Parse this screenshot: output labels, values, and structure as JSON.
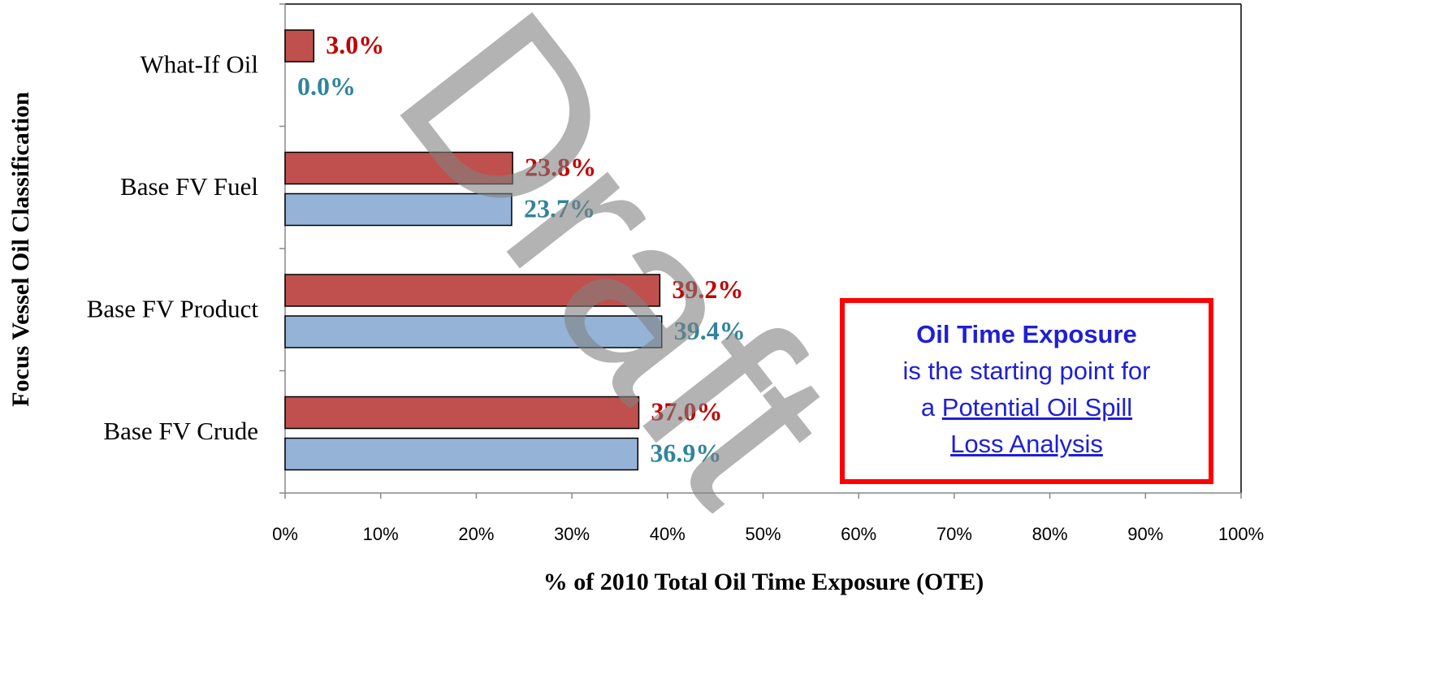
{
  "chart_data": {
    "type": "hbar",
    "x_label": "% of 2010 Total Oil Time Exposure (OTE)",
    "y_label": "Focus Vessel Oil Classification",
    "categories": [
      "What-If Oil",
      "Base FV Fuel",
      "Base FV Product",
      "Base FV Crude"
    ],
    "series": [
      {
        "color": "#c0504d",
        "label_color": "#c00000",
        "values": [
          3.0,
          23.8,
          39.2,
          37.0
        ],
        "value_labels": [
          "3.0%",
          "23.8%",
          "39.2%",
          "37.0%"
        ]
      },
      {
        "color": "#95b3d7",
        "label_color": "#31849b",
        "values": [
          0.0,
          23.7,
          39.4,
          36.9
        ],
        "value_labels": [
          "0.0%",
          "23.7%",
          "39.4%",
          "36.9%"
        ]
      }
    ],
    "xlim": [
      0,
      100
    ],
    "xticks": [
      {
        "value": 0,
        "label": "0%"
      },
      {
        "value": 10,
        "label": "10%"
      },
      {
        "value": 20,
        "label": "20%"
      },
      {
        "value": 30,
        "label": "30%"
      },
      {
        "value": 40,
        "label": "40%"
      },
      {
        "value": 50,
        "label": "50%"
      },
      {
        "value": 60,
        "label": "60%"
      },
      {
        "value": 70,
        "label": "70%"
      },
      {
        "value": 80,
        "label": "80%"
      },
      {
        "value": 90,
        "label": "90%"
      },
      {
        "value": 100,
        "label": "100%"
      }
    ],
    "watermark": "Draft",
    "annotation": {
      "heading": "Oil Time Exposure",
      "text": "is the starting point for",
      "prefix": "a",
      "link": [
        "Potential Oil Spill",
        "Loss Analysis"
      ]
    }
  }
}
